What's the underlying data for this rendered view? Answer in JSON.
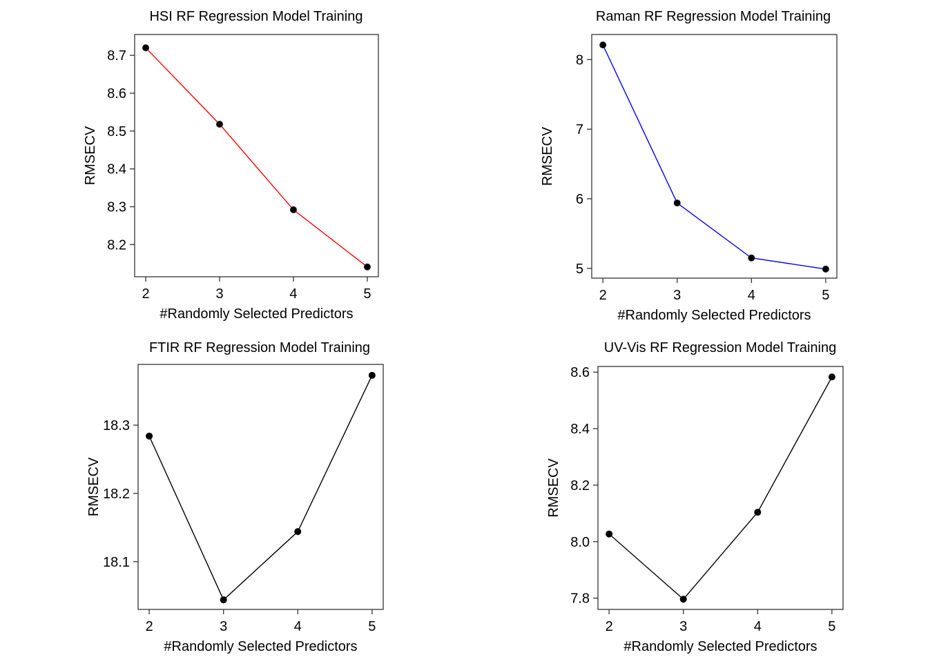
{
  "chart_data": [
    {
      "type": "line",
      "title": "HSI RF Regression Model Training",
      "xlabel": "#Randomly Selected Predictors",
      "ylabel": "RMSECV",
      "x": [
        2,
        3,
        4,
        5
      ],
      "xticks": [
        "2",
        "3",
        "4",
        "5"
      ],
      "xlim": [
        1.85,
        5.15
      ],
      "ylim": [
        8.115,
        8.755
      ],
      "yticks": [
        "8.2",
        "8.3",
        "8.4",
        "8.5",
        "8.6",
        "8.7"
      ],
      "yticks_values": [
        8.2,
        8.3,
        8.4,
        8.5,
        8.6,
        8.7
      ],
      "series": [
        {
          "values": [
            8.72,
            8.518,
            8.292,
            8.141
          ],
          "color": "#ff0000"
        }
      ],
      "grid": false
    },
    {
      "type": "line",
      "title": "Raman RF Regression Model Training",
      "xlabel": "#Randomly Selected Predictors",
      "ylabel": "RMSECV",
      "x": [
        2,
        3,
        4,
        5
      ],
      "xticks": [
        "2",
        "3",
        "4",
        "5"
      ],
      "xlim": [
        1.85,
        5.15
      ],
      "ylim": [
        4.86,
        8.36
      ],
      "yticks": [
        "5",
        "6",
        "7",
        "8"
      ],
      "yticks_values": [
        5,
        6,
        7,
        8
      ],
      "series": [
        {
          "values": [
            8.21,
            5.94,
            5.15,
            4.99
          ],
          "color": "#0000ff"
        }
      ],
      "grid": false
    },
    {
      "type": "line",
      "title": "FTIR RF Regression Model Training",
      "xlabel": "#Randomly Selected Predictors",
      "ylabel": "RMSECV",
      "x": [
        2,
        3,
        4,
        5
      ],
      "xticks": [
        "2",
        "3",
        "4",
        "5"
      ],
      "xlim": [
        1.85,
        5.15
      ],
      "ylim": [
        18.03,
        18.389
      ],
      "yticks": [
        "18.1",
        "18.2",
        "18.3"
      ],
      "yticks_values": [
        18.1,
        18.2,
        18.3
      ],
      "series": [
        {
          "values": [
            18.284,
            18.044,
            18.144,
            18.373
          ],
          "color": "#000000"
        }
      ],
      "grid": false
    },
    {
      "type": "line",
      "title": "UV-Vis RF Regression Model Training",
      "xlabel": "#Randomly Selected Predictors",
      "ylabel": "RMSECV",
      "x": [
        2,
        3,
        4,
        5
      ],
      "xticks": [
        "2",
        "3",
        "4",
        "5"
      ],
      "xlim": [
        1.85,
        5.15
      ],
      "ylim": [
        7.76,
        8.62
      ],
      "yticks": [
        "7.8",
        "8.0",
        "8.2",
        "8.4",
        "8.6"
      ],
      "yticks_values": [
        7.8,
        8.0,
        8.2,
        8.4,
        8.6
      ],
      "series": [
        {
          "values": [
            8.027,
            7.796,
            8.104,
            8.583
          ],
          "color": "#000000"
        }
      ],
      "grid": false
    }
  ]
}
